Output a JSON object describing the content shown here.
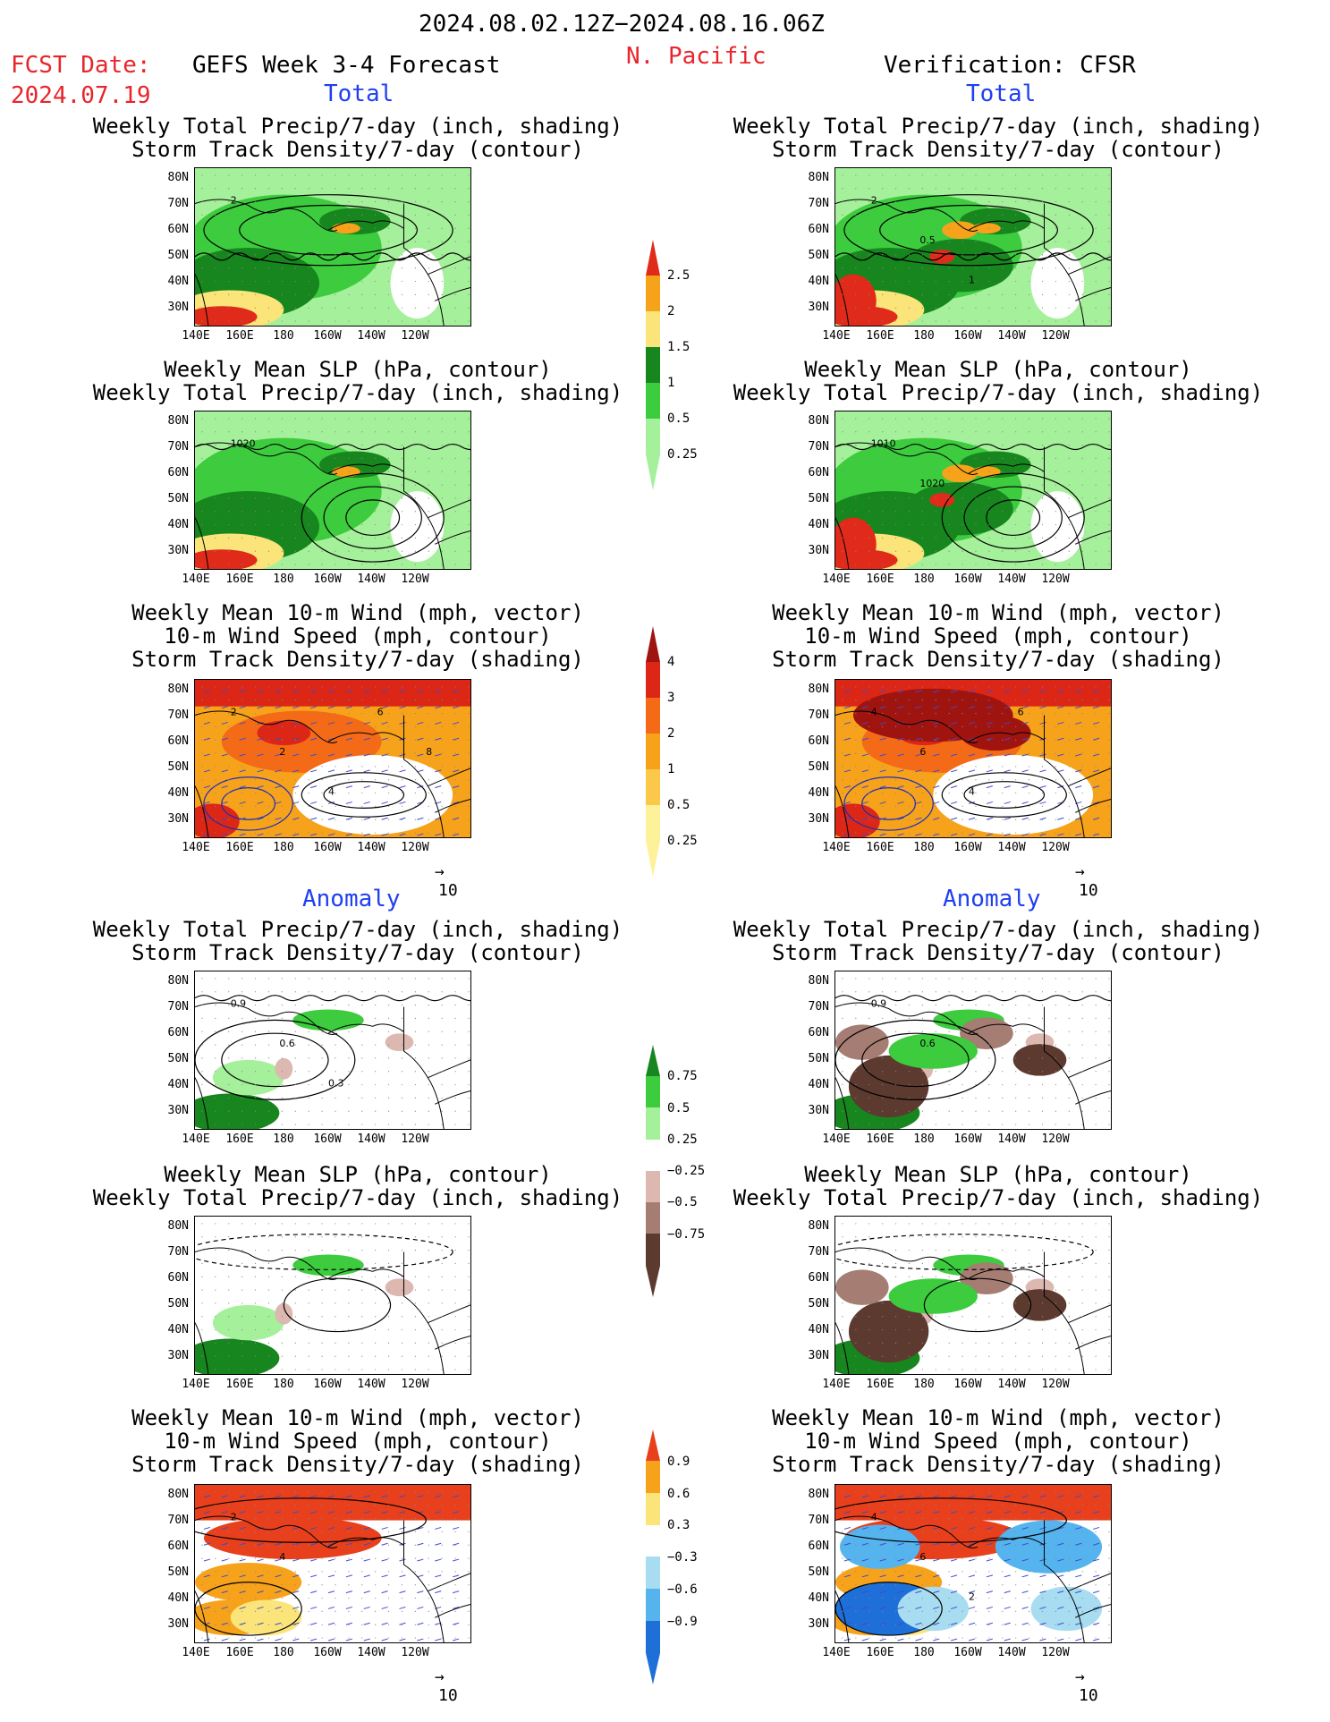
{
  "header": {
    "date_range": "2024.08.02.12Z−2024.08.16.06Z",
    "fcst_label": "FCST Date:",
    "fcst_date": "2024.07.19",
    "forecast_title": "GEFS Week 3-4 Forecast",
    "region": "N. Pacific",
    "verification": "Verification: CFSR"
  },
  "sections": {
    "total": "Total",
    "anomaly": "Anomaly"
  },
  "titles": {
    "precip_storm": [
      "Weekly Total Precip/7-day (inch, shading)",
      "Storm Track Density/7-day (contour)"
    ],
    "slp_precip": [
      "Weekly Mean SLP (hPa, contour)",
      "Weekly Total Precip/7-day (inch, shading)"
    ],
    "wind_storm": [
      "Weekly Mean 10-m Wind (mph, vector)",
      "10-m Wind Speed (mph, contour)",
      "Storm Track Density/7-day (shading)"
    ]
  },
  "axes": {
    "lat_labels": [
      "80N",
      "70N",
      "60N",
      "50N",
      "40N",
      "30N"
    ],
    "lon_labels": [
      "140E",
      "160E",
      "180",
      "160W",
      "140W",
      "120W"
    ],
    "vector_ref": "10"
  },
  "colorbars": {
    "precip_total": {
      "labels": [
        "2.5",
        "2",
        "1.5",
        "1",
        "0.5",
        "0.25"
      ],
      "colors": [
        "#e02a1a",
        "#f7a21b",
        "#fbe47a",
        "#17861e",
        "#3ccc3e",
        "#a5f09a"
      ]
    },
    "storm_total": {
      "labels": [
        "4",
        "3",
        "2",
        "1",
        "0.5",
        "0.25"
      ],
      "colors": [
        "#a01410",
        "#dc2616",
        "#f46a16",
        "#f7a21b",
        "#fbc84a",
        "#fdf29a"
      ]
    },
    "precip_anom": {
      "labels": [
        "0.75",
        "0.5",
        "0.25",
        "−0.25",
        "−0.5",
        "−0.75"
      ],
      "colors": [
        "#17861e",
        "#3ccc3e",
        "#a5f09a",
        "#ffffff",
        "#dcb8b0",
        "#a57d72",
        "#5c3a30"
      ]
    },
    "storm_anom": {
      "labels": [
        "0.9",
        "0.6",
        "0.3",
        "−0.3",
        "−0.6",
        "−0.9"
      ],
      "colors": [
        "#e8401c",
        "#f7a21b",
        "#fbe47a",
        "#ffffff",
        "#a8dcf0",
        "#55b4ee",
        "#1e6fd8"
      ]
    }
  },
  "panel_labels": {
    "p1": [
      "2"
    ],
    "p2": [
      "2",
      "0.5",
      "1"
    ],
    "p3": [
      "1020"
    ],
    "p4": [
      "1010",
      "1020"
    ],
    "p5": [
      "2",
      "2",
      "4",
      "6",
      "8"
    ],
    "p6": [
      "4",
      "6",
      "4",
      "6"
    ],
    "p7": [
      "0.9",
      "0.6",
      "0.3"
    ],
    "p8": [
      "0.9",
      "0.6"
    ],
    "p11": [
      "2",
      "4"
    ],
    "p12": [
      "4",
      "6",
      "2"
    ]
  }
}
